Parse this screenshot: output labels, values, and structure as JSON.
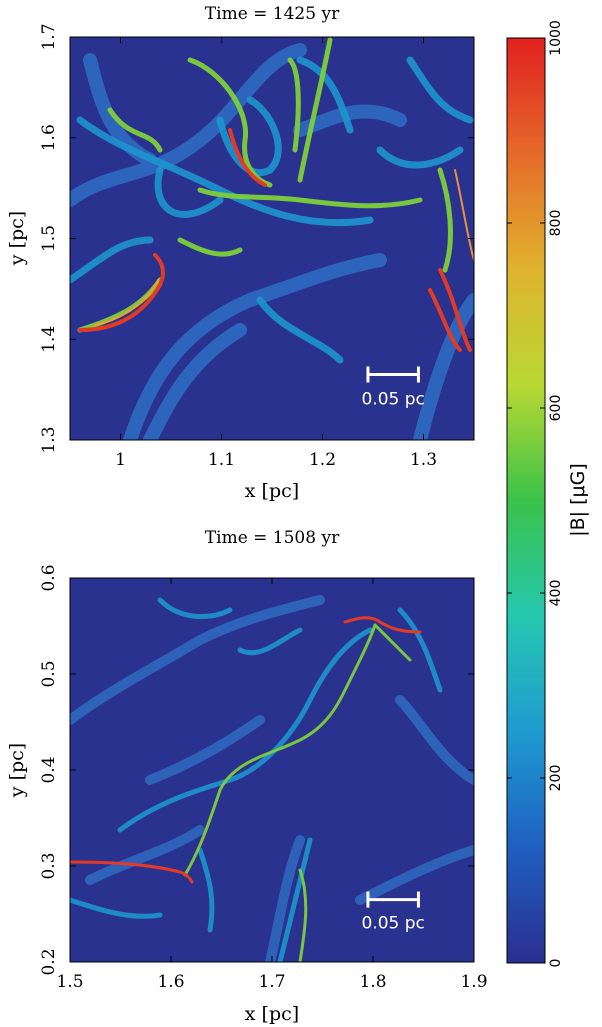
{
  "chart_data": [
    {
      "type": "heatmap",
      "title": "Time = 1425 yr",
      "xlabel": "x [pc]",
      "ylabel": "y [pc]",
      "xlim": [
        0.95,
        1.35
      ],
      "ylim": [
        1.3,
        1.7
      ],
      "xticks": [
        1,
        1.1,
        1.2,
        1.3
      ],
      "xtick_labels": [
        "1",
        "1.1",
        "1.2",
        "1.3"
      ],
      "yticks": [
        1.3,
        1.4,
        1.5,
        1.6,
        1.7
      ],
      "ytick_labels": [
        "1.3",
        "1.4",
        "1.5",
        "1.6",
        "1.7"
      ],
      "scale_bar": {
        "length": 0.05,
        "label": "0.05 pc",
        "x_start": 1.245,
        "y": 1.365,
        "label_y": 1.335
      }
    },
    {
      "type": "heatmap",
      "title": "Time = 1508 yr",
      "xlabel": "x [pc]",
      "ylabel": "y [pc]",
      "xlim": [
        1.5,
        1.9
      ],
      "ylim": [
        0.2,
        0.6
      ],
      "xticks": [
        1.5,
        1.6,
        1.7,
        1.8,
        1.9
      ],
      "xtick_labels": [
        "1.5",
        "1.6",
        "1.7",
        "1.8",
        "1.9"
      ],
      "yticks": [
        0.2,
        0.3,
        0.4,
        0.5,
        0.6
      ],
      "ytick_labels": [
        "0.2",
        "0.3",
        "0.4",
        "0.5",
        "0.6"
      ],
      "scale_bar": {
        "length": 0.05,
        "label": "0.05 pc",
        "x_start": 1.795,
        "y": 0.265,
        "label_y": 0.235
      }
    }
  ],
  "colorbar": {
    "label": "|B| [μG]",
    "range": [
      0,
      1000
    ],
    "ticks": [
      0,
      200,
      400,
      600,
      800,
      1000
    ],
    "tick_labels": [
      "0",
      "200",
      "400",
      "600",
      "800",
      "1000"
    ],
    "colors": [
      "#2a2f8f",
      "#1f5fc0",
      "#1e9bd0",
      "#26c7b0",
      "#3bc24a",
      "#b9d833",
      "#e0b32e",
      "#e56a2a",
      "#e02020"
    ]
  }
}
